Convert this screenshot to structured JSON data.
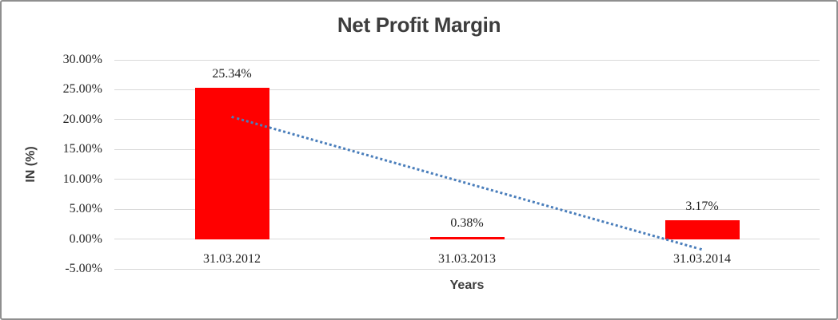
{
  "chart_data": {
    "type": "bar",
    "title": "Net Profit Margin",
    "xlabel": "Years",
    "ylabel": "IN (%)",
    "categories": [
      "31.03.2012",
      "31.03.2013",
      "31.03.2014"
    ],
    "values": [
      25.34,
      0.38,
      3.17
    ],
    "data_labels": [
      "25.34%",
      "0.38%",
      "3.17%"
    ],
    "ylim": [
      -5,
      30
    ],
    "yticks": [
      30,
      25,
      20,
      15,
      10,
      5,
      0,
      -5
    ],
    "ytick_labels": [
      "30.00%",
      "25.00%",
      "20.00%",
      "15.00%",
      "10.00%",
      "5.00%",
      "0.00%",
      "-5.00%"
    ],
    "grid": true,
    "legend": false,
    "bar_color": "#ff0000",
    "gridline_color": "#d9d9d9",
    "title_color": "#3d3d3d",
    "trendline": {
      "type": "linear",
      "style": "dotted",
      "color": "#4a7ebb",
      "start_category_index": 0,
      "start_value": 20.7,
      "end_category_index": 2,
      "end_value": -1.5
    }
  }
}
